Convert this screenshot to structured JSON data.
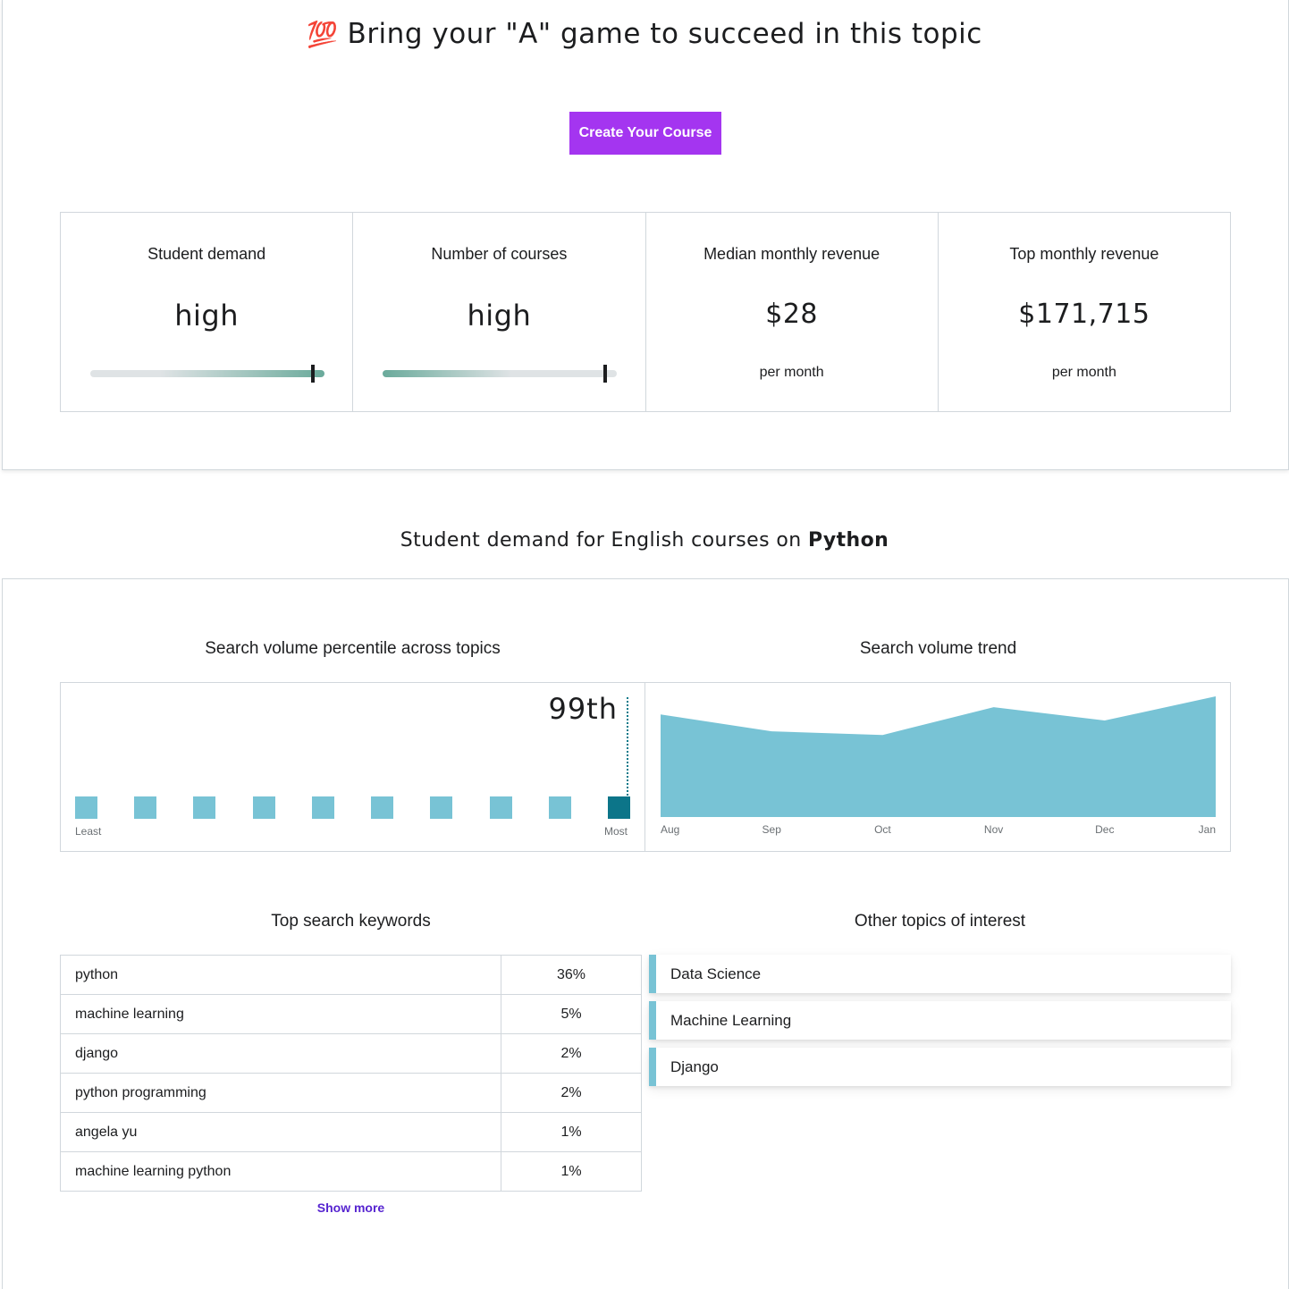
{
  "hero": {
    "emoji": "💯",
    "title": "Bring your \"A\" game to succeed in this topic",
    "button_label": "Create Your Course",
    "accent_color": "#a435f0"
  },
  "metrics": [
    {
      "label": "Student demand",
      "value": "high",
      "level": 0.95
    },
    {
      "label": "Number of courses",
      "value": "high",
      "level": 0.95
    },
    {
      "label": "Median monthly revenue",
      "value": "$28",
      "sub": "per month"
    },
    {
      "label": "Top monthly revenue",
      "value": "$171,715",
      "sub": "per month"
    }
  ],
  "section": {
    "title_prefix": "Student demand for English courses on ",
    "title_topic": "Python"
  },
  "percentile": {
    "title": "Search volume percentile across topics",
    "value_label": "99th",
    "least_label": "Least",
    "most_label": "Most",
    "buckets": 10,
    "active_bucket": 9
  },
  "trend": {
    "title": "Search volume trend",
    "chart_data": {
      "type": "area",
      "x": [
        "Aug",
        "Sep",
        "Oct",
        "Nov",
        "Dec",
        "Jan"
      ],
      "values": [
        0.85,
        0.71,
        0.68,
        0.91,
        0.8,
        1.0
      ],
      "color": "#78c3d5"
    }
  },
  "keywords": {
    "title": "Top search keywords",
    "rows": [
      {
        "keyword": "python",
        "share": "36%"
      },
      {
        "keyword": "machine learning",
        "share": "5%"
      },
      {
        "keyword": "django",
        "share": "2%"
      },
      {
        "keyword": "python programming",
        "share": "2%"
      },
      {
        "keyword": "angela yu",
        "share": "1%"
      },
      {
        "keyword": "machine learning python",
        "share": "1%"
      }
    ],
    "show_more": "Show more"
  },
  "topics": {
    "title": "Other topics of interest",
    "items": [
      "Data Science",
      "Machine Learning",
      "Django"
    ]
  }
}
